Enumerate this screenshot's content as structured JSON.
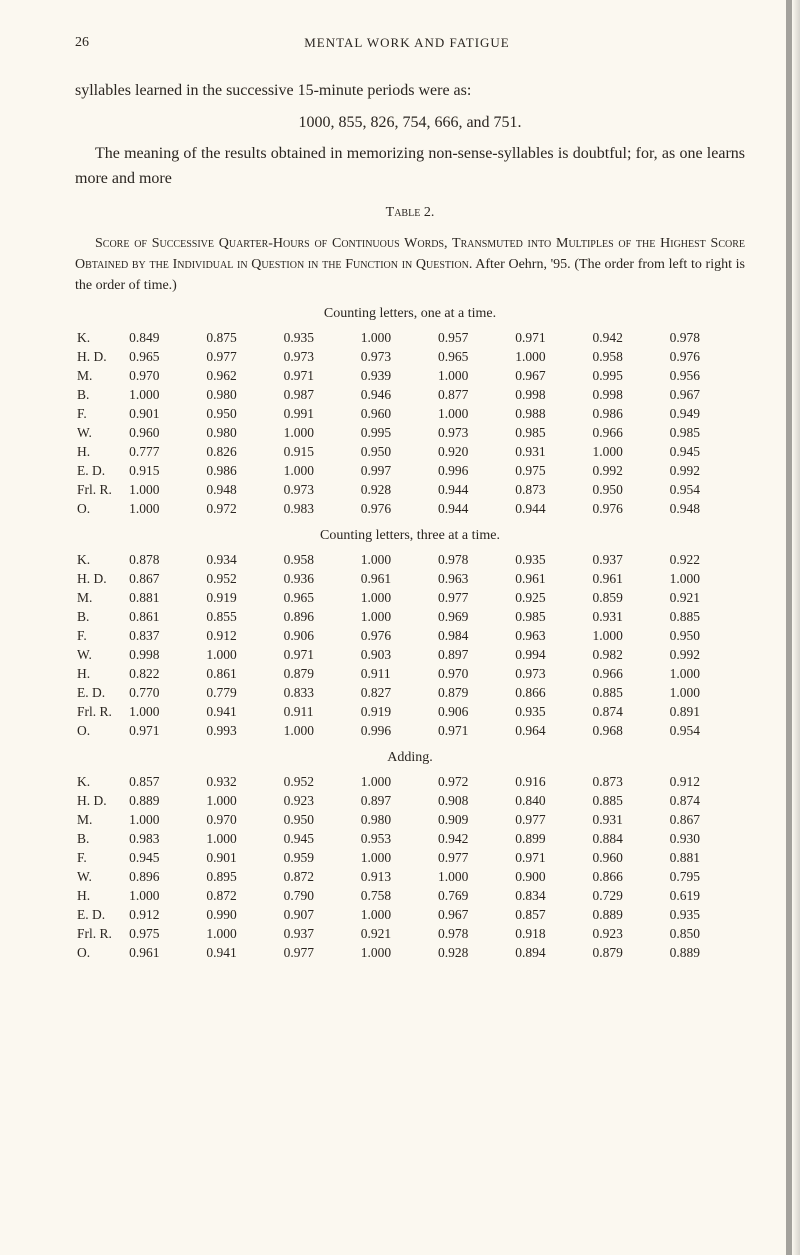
{
  "page": {
    "number": "26",
    "running_header": "MENTAL WORK AND FATIGUE"
  },
  "paragraphs": {
    "p1": "syllables learned in the successive 15-minute periods were as:",
    "number_line": "1000, 855, 826, 754, 666, and 751.",
    "p2": "The meaning of the results obtained in memorizing non-sense-syllables is doubtful; for, as one learns more and more"
  },
  "table_caption": "Table 2.",
  "table_description_1": "Score of Successive Quarter-Hours of Continuous Words, Trans-muted into Multiples of the Highest Score Obtained by the Individual in Question in the Function in Question. After Oehrn, '95. (The order from left to right is the order of time.)",
  "sections": {
    "s1_title": "Counting letters, one at a time.",
    "s2_title": "Counting letters, three at a time.",
    "s3_title": "Adding."
  },
  "table1": {
    "rows": [
      {
        "label": "K.",
        "vals": [
          "0.849",
          "0.875",
          "0.935",
          "1.000",
          "0.957",
          "0.971",
          "0.942",
          "0.978"
        ]
      },
      {
        "label": "H. D.",
        "vals": [
          "0.965",
          "0.977",
          "0.973",
          "0.973",
          "0.965",
          "1.000",
          "0.958",
          "0.976"
        ]
      },
      {
        "label": "M.",
        "vals": [
          "0.970",
          "0.962",
          "0.971",
          "0.939",
          "1.000",
          "0.967",
          "0.995",
          "0.956"
        ]
      },
      {
        "label": "B.",
        "vals": [
          "1.000",
          "0.980",
          "0.987",
          "0.946",
          "0.877",
          "0.998",
          "0.998",
          "0.967"
        ]
      },
      {
        "label": "F.",
        "vals": [
          "0.901",
          "0.950",
          "0.991",
          "0.960",
          "1.000",
          "0.988",
          "0.986",
          "0.949"
        ]
      },
      {
        "label": "W.",
        "vals": [
          "0.960",
          "0.980",
          "1.000",
          "0.995",
          "0.973",
          "0.985",
          "0.966",
          "0.985"
        ]
      },
      {
        "label": "H.",
        "vals": [
          "0.777",
          "0.826",
          "0.915",
          "0.950",
          "0.920",
          "0.931",
          "1.000",
          "0.945"
        ]
      },
      {
        "label": "E. D.",
        "vals": [
          "0.915",
          "0.986",
          "1.000",
          "0.997",
          "0.996",
          "0.975",
          "0.992",
          "0.992"
        ]
      },
      {
        "label": "Frl. R.",
        "vals": [
          "1.000",
          "0.948",
          "0.973",
          "0.928",
          "0.944",
          "0.873",
          "0.950",
          "0.954"
        ]
      },
      {
        "label": "O.",
        "vals": [
          "1.000",
          "0.972",
          "0.983",
          "0.976",
          "0.944",
          "0.944",
          "0.976",
          "0.948"
        ]
      }
    ]
  },
  "table2": {
    "rows": [
      {
        "label": "K.",
        "vals": [
          "0.878",
          "0.934",
          "0.958",
          "1.000",
          "0.978",
          "0.935",
          "0.937",
          "0.922"
        ]
      },
      {
        "label": "H. D.",
        "vals": [
          "0.867",
          "0.952",
          "0.936",
          "0.961",
          "0.963",
          "0.961",
          "0.961",
          "1.000"
        ]
      },
      {
        "label": "M.",
        "vals": [
          "0.881",
          "0.919",
          "0.965",
          "1.000",
          "0.977",
          "0.925",
          "0.859",
          "0.921"
        ]
      },
      {
        "label": "B.",
        "vals": [
          "0.861",
          "0.855",
          "0.896",
          "1.000",
          "0.969",
          "0.985",
          "0.931",
          "0.885"
        ]
      },
      {
        "label": "F.",
        "vals": [
          "0.837",
          "0.912",
          "0.906",
          "0.976",
          "0.984",
          "0.963",
          "1.000",
          "0.950"
        ]
      },
      {
        "label": "W.",
        "vals": [
          "0.998",
          "1.000",
          "0.971",
          "0.903",
          "0.897",
          "0.994",
          "0.982",
          "0.992"
        ]
      },
      {
        "label": "H.",
        "vals": [
          "0.822",
          "0.861",
          "0.879",
          "0.911",
          "0.970",
          "0.973",
          "0.966",
          "1.000"
        ]
      },
      {
        "label": "E. D.",
        "vals": [
          "0.770",
          "0.779",
          "0.833",
          "0.827",
          "0.879",
          "0.866",
          "0.885",
          "1.000"
        ]
      },
      {
        "label": "Frl. R.",
        "vals": [
          "1.000",
          "0.941",
          "0.911",
          "0.919",
          "0.906",
          "0.935",
          "0.874",
          "0.891"
        ]
      },
      {
        "label": "O.",
        "vals": [
          "0.971",
          "0.993",
          "1.000",
          "0.996",
          "0.971",
          "0.964",
          "0.968",
          "0.954"
        ]
      }
    ]
  },
  "table3": {
    "rows": [
      {
        "label": "K.",
        "vals": [
          "0.857",
          "0.932",
          "0.952",
          "1.000",
          "0.972",
          "0.916",
          "0.873",
          "0.912"
        ]
      },
      {
        "label": "H. D.",
        "vals": [
          "0.889",
          "1.000",
          "0.923",
          "0.897",
          "0.908",
          "0.840",
          "0.885",
          "0.874"
        ]
      },
      {
        "label": "M.",
        "vals": [
          "1.000",
          "0.970",
          "0.950",
          "0.980",
          "0.909",
          "0.977",
          "0.931",
          "0.867"
        ]
      },
      {
        "label": "B.",
        "vals": [
          "0.983",
          "1.000",
          "0.945",
          "0.953",
          "0.942",
          "0.899",
          "0.884",
          "0.930"
        ]
      },
      {
        "label": "F.",
        "vals": [
          "0.945",
          "0.901",
          "0.959",
          "1.000",
          "0.977",
          "0.971",
          "0.960",
          "0.881"
        ]
      },
      {
        "label": "W.",
        "vals": [
          "0.896",
          "0.895",
          "0.872",
          "0.913",
          "1.000",
          "0.900",
          "0.866",
          "0.795"
        ]
      },
      {
        "label": "H.",
        "vals": [
          "1.000",
          "0.872",
          "0.790",
          "0.758",
          "0.769",
          "0.834",
          "0.729",
          "0.619"
        ]
      },
      {
        "label": "E. D.",
        "vals": [
          "0.912",
          "0.990",
          "0.907",
          "1.000",
          "0.967",
          "0.857",
          "0.889",
          "0.935"
        ]
      },
      {
        "label": "Frl. R.",
        "vals": [
          "0.975",
          "1.000",
          "0.937",
          "0.921",
          "0.978",
          "0.918",
          "0.923",
          "0.850"
        ]
      },
      {
        "label": "O.",
        "vals": [
          "0.961",
          "0.941",
          "0.977",
          "1.000",
          "0.928",
          "0.894",
          "0.879",
          "0.889"
        ]
      }
    ]
  },
  "style": {
    "background_color": "#fbf8f0",
    "text_color": "#2a2520",
    "body_fontsize": 16,
    "table_fontsize": 13.5,
    "header_fontsize": 13
  }
}
